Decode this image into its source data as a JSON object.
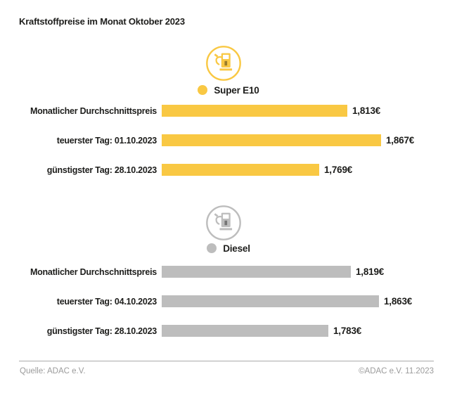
{
  "title": "Kraftstoffpreise im Monat Oktober 2023",
  "colors": {
    "super_e10": "#F9C843",
    "diesel": "#BDBDBD",
    "text": "#1D1D1B",
    "footer_text": "#9B9B9B",
    "divider": "#ABABAB",
    "background": "#FFFFFF"
  },
  "chart_data": [
    {
      "type": "bar",
      "orientation": "horizontal",
      "group": "Super E10",
      "icon": "fuel-pump-icon",
      "color": "#F9C843",
      "legend_label": "Super E10",
      "categories": [
        "Monatlicher Durchschnittspreis",
        "teuerster Tag: 01.10.2023",
        "günstigster Tag: 28.10.2023"
      ],
      "values": [
        1.813,
        1.867,
        1.769
      ],
      "value_labels": [
        "1,813€",
        "1,867€",
        "1,769€"
      ],
      "unit": "€",
      "xlim": [
        1.52,
        1.95
      ],
      "grid": false,
      "legend_position": "top-center"
    },
    {
      "type": "bar",
      "orientation": "horizontal",
      "group": "Diesel",
      "icon": "fuel-pump-icon",
      "color": "#BDBDBD",
      "legend_label": "Diesel",
      "categories": [
        "Monatlicher Durchschnittspreis",
        "teuerster Tag: 04.10.2023",
        "günstigster Tag: 28.10.2023"
      ],
      "values": [
        1.819,
        1.863,
        1.783
      ],
      "value_labels": [
        "1,819€",
        "1,863€",
        "1,783€"
      ],
      "unit": "€",
      "xlim": [
        1.52,
        1.95
      ],
      "grid": false,
      "legend_position": "top-center"
    }
  ],
  "footer": {
    "source": "Quelle: ADAC e.V.",
    "copyright": "©ADAC e.V. 11.2023"
  }
}
